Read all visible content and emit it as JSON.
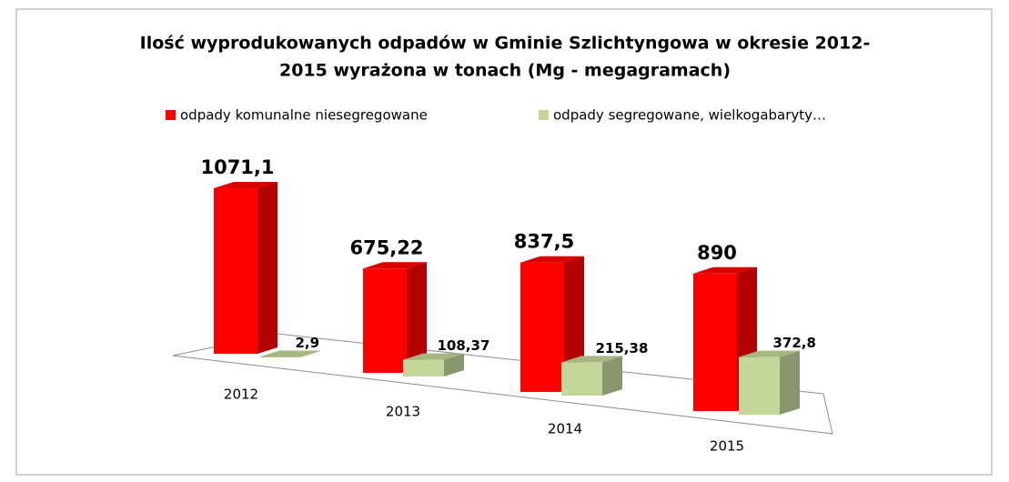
{
  "chart_data": {
    "type": "bar3d",
    "title": [
      "Ilość wyprodukowanych odpadów w Gminie Szlichtyngowa  w okresie 2012-",
      "2015 wyrażona w tonach (Mg - megagramach)"
    ],
    "categories": [
      "2012",
      "2013",
      "2014",
      "2015"
    ],
    "series": [
      {
        "name": "odpady komunalne niesegregowane",
        "color": "#ff0000",
        "values": [
          1071.1,
          675.22,
          837.5,
          890
        ],
        "value_labels": [
          "1071,1",
          "675,22",
          "837,5",
          "890"
        ]
      },
      {
        "name": "odpady segregowane, wielkogabaryty…",
        "color": "#c4d79b",
        "values": [
          2.9,
          108.37,
          215.38,
          372.8
        ],
        "value_labels": [
          "2,9",
          "108,37",
          "215,38",
          "372,8"
        ]
      }
    ]
  }
}
